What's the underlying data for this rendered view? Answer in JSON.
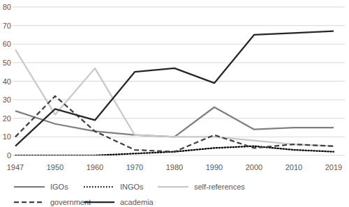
{
  "chart_data": {
    "type": "line",
    "categories": [
      "1947",
      "1950",
      "1960",
      "1970",
      "1980",
      "1990",
      "2000",
      "2010",
      "2019"
    ],
    "series": [
      {
        "name": "IGOs",
        "color": "#7f7f7f",
        "line_style": "solid",
        "values": [
          24,
          17,
          13,
          11,
          10,
          26,
          14,
          15,
          15
        ]
      },
      {
        "name": "INGOs",
        "color": "#000000",
        "line_style": "dotted",
        "values": [
          0,
          0,
          0,
          1,
          2,
          4,
          5,
          3,
          2
        ]
      },
      {
        "name": "self-references",
        "color": "#c8c8c8",
        "line_style": "solid",
        "values": [
          57,
          22,
          47,
          11,
          10,
          10,
          8,
          6,
          5
        ]
      },
      {
        "name": "government",
        "color": "#404040",
        "line_style": "dashed",
        "values": [
          10,
          32,
          13,
          3,
          2,
          11,
          4,
          6,
          5
        ]
      },
      {
        "name": "academia",
        "color": "#262626",
        "line_style": "solid",
        "values": [
          5,
          25,
          19,
          45,
          47,
          39,
          65,
          66,
          67
        ]
      }
    ],
    "ylim": [
      0,
      80
    ],
    "yticks": [
      0,
      10,
      20,
      30,
      40,
      50,
      60,
      70,
      80
    ],
    "grid": true,
    "legend": "bottom"
  }
}
